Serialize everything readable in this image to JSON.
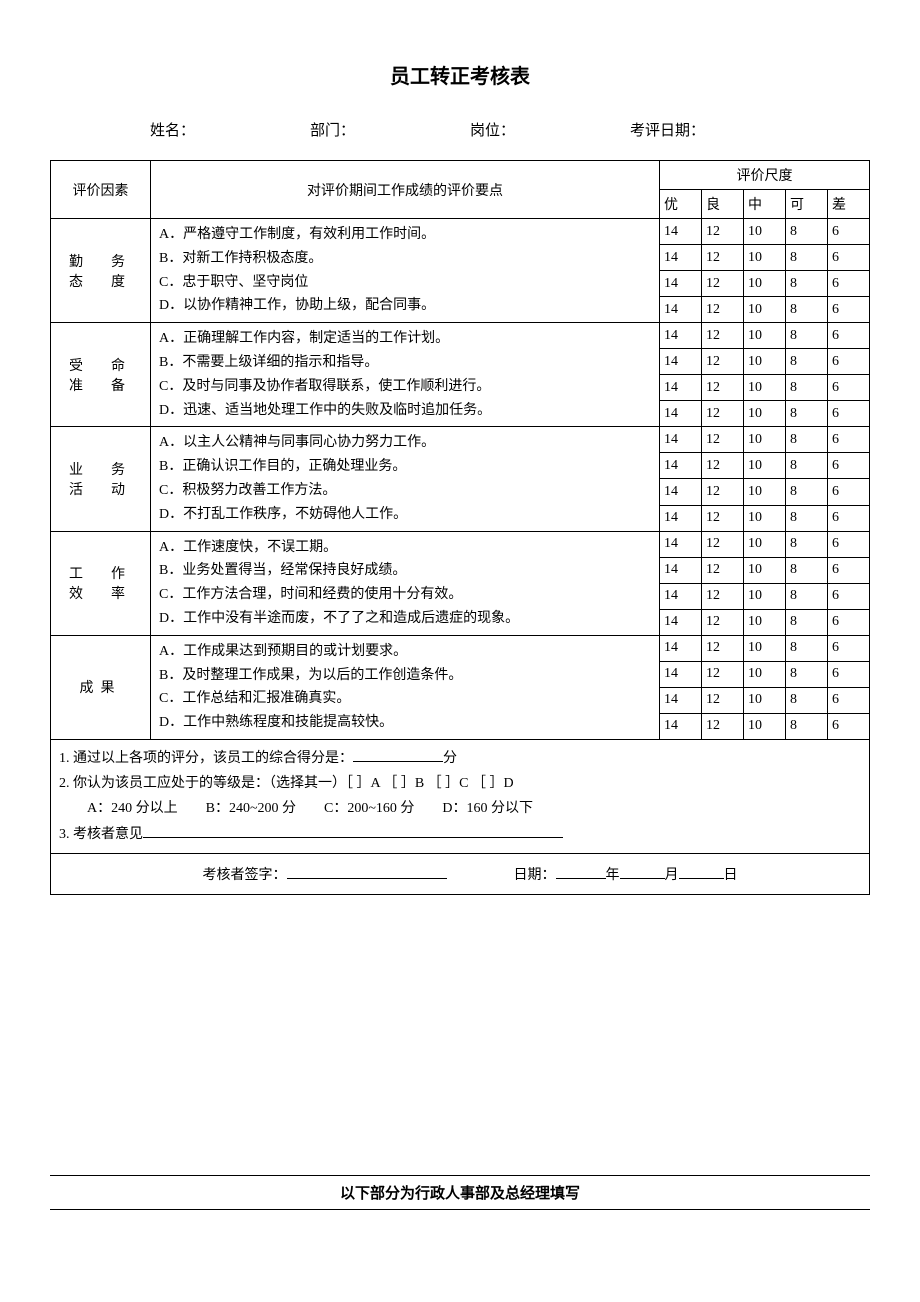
{
  "title": "员工转正考核表",
  "header": {
    "name_label": "姓名：",
    "dept_label": "部门：",
    "post_label": "岗位：",
    "date_label": "考评日期："
  },
  "table": {
    "col_factor": "评价因素",
    "col_points": "对评价期间工作成绩的评价要点",
    "col_scale": "评价尺度",
    "scale_labels": [
      "优",
      "良",
      "中",
      "可",
      "差"
    ],
    "score_values": [
      "14",
      "12",
      "10",
      "8",
      "6"
    ],
    "sections": [
      {
        "factor": "勤　务\n态　度",
        "points": [
          "A．严格遵守工作制度，有效利用工作时间。",
          "B．对新工作持积极态度。",
          "C．忠于职守、坚守岗位",
          "D．以协作精神工作，协助上级，配合同事。"
        ]
      },
      {
        "factor": "受　命\n准　备",
        "points": [
          "A．正确理解工作内容，制定适当的工作计划。",
          "B．不需要上级详细的指示和指导。",
          "C．及时与同事及协作者取得联系，使工作顺利进行。",
          "D．迅速、适当地处理工作中的失败及临时追加任务。"
        ]
      },
      {
        "factor": "业　务\n活　动",
        "points": [
          "A．以主人公精神与同事同心协力努力工作。",
          "B．正确认识工作目的，正确处理业务。",
          "C．积极努力改善工作方法。",
          "D．不打乱工作秩序，不妨碍他人工作。"
        ]
      },
      {
        "factor": "工　作\n效　率",
        "points": [
          "A．工作速度快，不误工期。",
          "B．业务处置得当，经常保持良好成绩。",
          "C．工作方法合理，时间和经费的使用十分有效。",
          "D．工作中没有半途而废，不了了之和造成后遗症的现象。"
        ]
      },
      {
        "factor": "成果",
        "points": [
          "A．工作成果达到预期目的或计划要求。",
          "B．及时整理工作成果，为以后的工作创造条件。",
          "C．工作总结和汇报准确真实。",
          "D．工作中熟练程度和技能提高较快。"
        ]
      }
    ],
    "summary": {
      "line1_a": "1. 通过以上各项的评分，该员工的综合得分是：",
      "line1_b": "分",
      "line2": "2. 你认为该员工应处于的等级是：（选择其一）［ ］A ［ ］B ［ ］C ［ ］D",
      "line2_opts": "　　A：240 分以上　　B：240~200 分　　C：200~160 分　　D：160 分以下",
      "line3": "3. 考核者意见"
    },
    "sign": {
      "signer": "考核者签字：",
      "date": "日期：",
      "year": "年",
      "month": "月",
      "day": "日"
    }
  },
  "footer": "以下部分为行政人事部及总经理填写"
}
